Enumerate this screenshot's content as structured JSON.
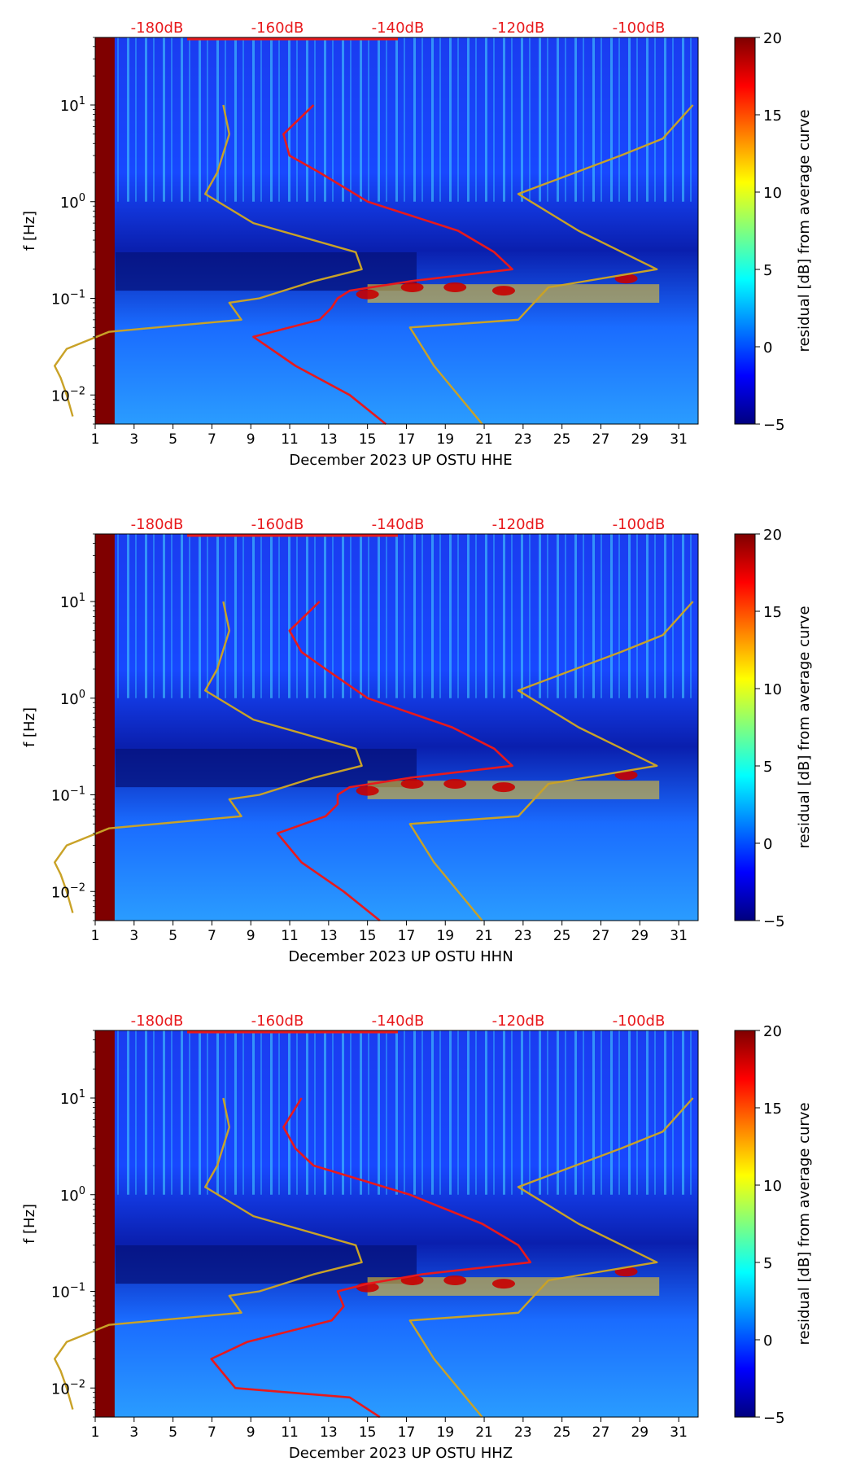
{
  "chart_data": [
    {
      "type": "heatmap",
      "panel": "HHE",
      "xlabel": "December 2023 UP OSTU  HHE",
      "ylabel": "f [Hz]",
      "x_ticks": [
        "1",
        "3",
        "5",
        "7",
        "9",
        "11",
        "13",
        "15",
        "17",
        "19",
        "21",
        "23",
        "25",
        "27",
        "29",
        "31"
      ],
      "x_range": [
        1,
        32
      ],
      "y_range_hz": [
        0.005,
        50
      ],
      "y_ticks": [
        {
          "value": 0.01,
          "base": "10",
          "exp": "−2"
        },
        {
          "value": 0.1,
          "base": "10",
          "exp": "−1"
        },
        {
          "value": 1,
          "base": "10",
          "exp": "0"
        },
        {
          "value": 10,
          "base": "10",
          "exp": "1"
        }
      ],
      "top_db_labels": [
        "-180dB",
        "-160dB",
        "-140dB",
        "-120dB",
        "-100dB"
      ],
      "colorbar": {
        "label": "residual [dB] from average curve",
        "range": [
          -5,
          20
        ],
        "ticks": [
          "20",
          "15",
          "10",
          "5",
          "0",
          "−5"
        ]
      },
      "series": [
        {
          "name": "average PSD curve (red, top dB axis)",
          "color": "#e8191c",
          "points": [
            [
              10,
              -154
            ],
            [
              5,
              -159
            ],
            [
              3,
              -158
            ],
            [
              2,
              -153
            ],
            [
              1,
              -145
            ],
            [
              0.5,
              -130
            ],
            [
              0.3,
              -124
            ],
            [
              0.2,
              -121
            ],
            [
              0.15,
              -138
            ],
            [
              0.12,
              -148
            ],
            [
              0.1,
              -150
            ],
            [
              0.08,
              -151
            ],
            [
              0.06,
              -153
            ],
            [
              0.04,
              -164
            ],
            [
              0.02,
              -157
            ],
            [
              0.01,
              -148
            ],
            [
              0.005,
              -142
            ]
          ]
        },
        {
          "name": "low noise model (gold, top dB axis)",
          "color": "#c9a227",
          "points": [
            [
              10,
              -169
            ],
            [
              5,
              -168
            ],
            [
              2,
              -170
            ],
            [
              1.2,
              -172
            ],
            [
              0.6,
              -164
            ],
            [
              0.3,
              -147
            ],
            [
              0.2,
              -146
            ],
            [
              0.15,
              -154
            ],
            [
              0.1,
              -163
            ],
            [
              0.09,
              -168
            ],
            [
              0.06,
              -166
            ],
            [
              0.045,
              -188
            ],
            [
              0.03,
              -195
            ],
            [
              0.02,
              -197
            ],
            [
              0.015,
              -196
            ],
            [
              0.01,
              -195
            ],
            [
              0.006,
              -194
            ]
          ]
        },
        {
          "name": "high noise model (gold, top dB axis)",
          "color": "#c9a227",
          "points": [
            [
              10,
              -91
            ],
            [
              4.5,
              -96
            ],
            [
              3,
              -103
            ],
            [
              1.2,
              -120
            ],
            [
              0.5,
              -110
            ],
            [
              0.2,
              -97
            ],
            [
              0.13,
              -115
            ],
            [
              0.06,
              -120
            ],
            [
              0.05,
              -138
            ],
            [
              0.02,
              -134
            ],
            [
              0.005,
              -126
            ]
          ]
        }
      ]
    },
    {
      "type": "heatmap",
      "panel": "HHN",
      "xlabel": "December 2023 UP OSTU  HHN",
      "ylabel": "f [Hz]",
      "x_ticks": [
        "1",
        "3",
        "5",
        "7",
        "9",
        "11",
        "13",
        "15",
        "17",
        "19",
        "21",
        "23",
        "25",
        "27",
        "29",
        "31"
      ],
      "x_range": [
        1,
        32
      ],
      "y_range_hz": [
        0.005,
        50
      ],
      "y_ticks": [
        {
          "value": 0.01,
          "base": "10",
          "exp": "−2"
        },
        {
          "value": 0.1,
          "base": "10",
          "exp": "−1"
        },
        {
          "value": 1,
          "base": "10",
          "exp": "0"
        },
        {
          "value": 10,
          "base": "10",
          "exp": "1"
        }
      ],
      "top_db_labels": [
        "-180dB",
        "-160dB",
        "-140dB",
        "-120dB",
        "-100dB"
      ],
      "colorbar": {
        "label": "residual [dB] from average curve",
        "range": [
          -5,
          20
        ],
        "ticks": [
          "20",
          "15",
          "10",
          "5",
          "0",
          "−5"
        ]
      },
      "series": [
        {
          "name": "average PSD curve (red, top dB axis)",
          "color": "#e8191c",
          "points": [
            [
              10,
              -153
            ],
            [
              5,
              -158
            ],
            [
              3,
              -156
            ],
            [
              2,
              -152
            ],
            [
              1,
              -145
            ],
            [
              0.5,
              -131
            ],
            [
              0.3,
              -124
            ],
            [
              0.2,
              -121
            ],
            [
              0.15,
              -138
            ],
            [
              0.12,
              -148
            ],
            [
              0.1,
              -150
            ],
            [
              0.08,
              -150
            ],
            [
              0.06,
              -152
            ],
            [
              0.04,
              -160
            ],
            [
              0.02,
              -156
            ],
            [
              0.01,
              -149
            ],
            [
              0.005,
              -143
            ]
          ]
        },
        {
          "name": "low noise model (gold, top dB axis)",
          "color": "#c9a227",
          "points": [
            [
              10,
              -169
            ],
            [
              5,
              -168
            ],
            [
              2,
              -170
            ],
            [
              1.2,
              -172
            ],
            [
              0.6,
              -164
            ],
            [
              0.3,
              -147
            ],
            [
              0.2,
              -146
            ],
            [
              0.15,
              -154
            ],
            [
              0.1,
              -163
            ],
            [
              0.09,
              -168
            ],
            [
              0.06,
              -166
            ],
            [
              0.045,
              -188
            ],
            [
              0.03,
              -195
            ],
            [
              0.02,
              -197
            ],
            [
              0.015,
              -196
            ],
            [
              0.01,
              -195
            ],
            [
              0.006,
              -194
            ]
          ]
        },
        {
          "name": "high noise model (gold, top dB axis)",
          "color": "#c9a227",
          "points": [
            [
              10,
              -91
            ],
            [
              4.5,
              -96
            ],
            [
              3,
              -103
            ],
            [
              1.2,
              -120
            ],
            [
              0.5,
              -110
            ],
            [
              0.2,
              -97
            ],
            [
              0.13,
              -115
            ],
            [
              0.06,
              -120
            ],
            [
              0.05,
              -138
            ],
            [
              0.02,
              -134
            ],
            [
              0.005,
              -126
            ]
          ]
        }
      ]
    },
    {
      "type": "heatmap",
      "panel": "HHZ",
      "xlabel": "December 2023 UP OSTU  HHZ",
      "ylabel": "f [Hz]",
      "x_ticks": [
        "1",
        "3",
        "5",
        "7",
        "9",
        "11",
        "13",
        "15",
        "17",
        "19",
        "21",
        "23",
        "25",
        "27",
        "29",
        "31"
      ],
      "x_range": [
        1,
        32
      ],
      "y_range_hz": [
        0.005,
        50
      ],
      "y_ticks": [
        {
          "value": 0.01,
          "base": "10",
          "exp": "−2"
        },
        {
          "value": 0.1,
          "base": "10",
          "exp": "−1"
        },
        {
          "value": 1,
          "base": "10",
          "exp": "0"
        },
        {
          "value": 10,
          "base": "10",
          "exp": "1"
        }
      ],
      "top_db_labels": [
        "-180dB",
        "-160dB",
        "-140dB",
        "-120dB",
        "-100dB"
      ],
      "colorbar": {
        "label": "residual [dB] from average curve",
        "range": [
          -5,
          20
        ],
        "ticks": [
          "20",
          "15",
          "10",
          "5",
          "0",
          "−5"
        ]
      },
      "series": [
        {
          "name": "average PSD curve (red, top dB axis)",
          "color": "#e8191c",
          "points": [
            [
              10,
              -156
            ],
            [
              5,
              -159
            ],
            [
              3,
              -157
            ],
            [
              2,
              -154
            ],
            [
              1,
              -138
            ],
            [
              0.5,
              -126
            ],
            [
              0.3,
              -120
            ],
            [
              0.2,
              -118
            ],
            [
              0.15,
              -136
            ],
            [
              0.12,
              -145
            ],
            [
              0.1,
              -150
            ],
            [
              0.07,
              -149
            ],
            [
              0.05,
              -151
            ],
            [
              0.03,
              -165
            ],
            [
              0.02,
              -171
            ],
            [
              0.01,
              -167
            ],
            [
              0.008,
              -148
            ],
            [
              0.005,
              -143
            ]
          ]
        },
        {
          "name": "low noise model (gold, top dB axis)",
          "color": "#c9a227",
          "points": [
            [
              10,
              -169
            ],
            [
              5,
              -168
            ],
            [
              2,
              -170
            ],
            [
              1.2,
              -172
            ],
            [
              0.6,
              -164
            ],
            [
              0.3,
              -147
            ],
            [
              0.2,
              -146
            ],
            [
              0.15,
              -154
            ],
            [
              0.1,
              -163
            ],
            [
              0.09,
              -168
            ],
            [
              0.06,
              -166
            ],
            [
              0.045,
              -188
            ],
            [
              0.03,
              -195
            ],
            [
              0.02,
              -197
            ],
            [
              0.015,
              -196
            ],
            [
              0.01,
              -195
            ],
            [
              0.006,
              -194
            ]
          ]
        },
        {
          "name": "high noise model (gold, top dB axis)",
          "color": "#c9a227",
          "points": [
            [
              10,
              -91
            ],
            [
              4.5,
              -96
            ],
            [
              3,
              -103
            ],
            [
              1.2,
              -120
            ],
            [
              0.5,
              -110
            ],
            [
              0.2,
              -97
            ],
            [
              0.13,
              -115
            ],
            [
              0.06,
              -120
            ],
            [
              0.05,
              -138
            ],
            [
              0.02,
              -134
            ],
            [
              0.005,
              -126
            ]
          ]
        }
      ]
    }
  ]
}
